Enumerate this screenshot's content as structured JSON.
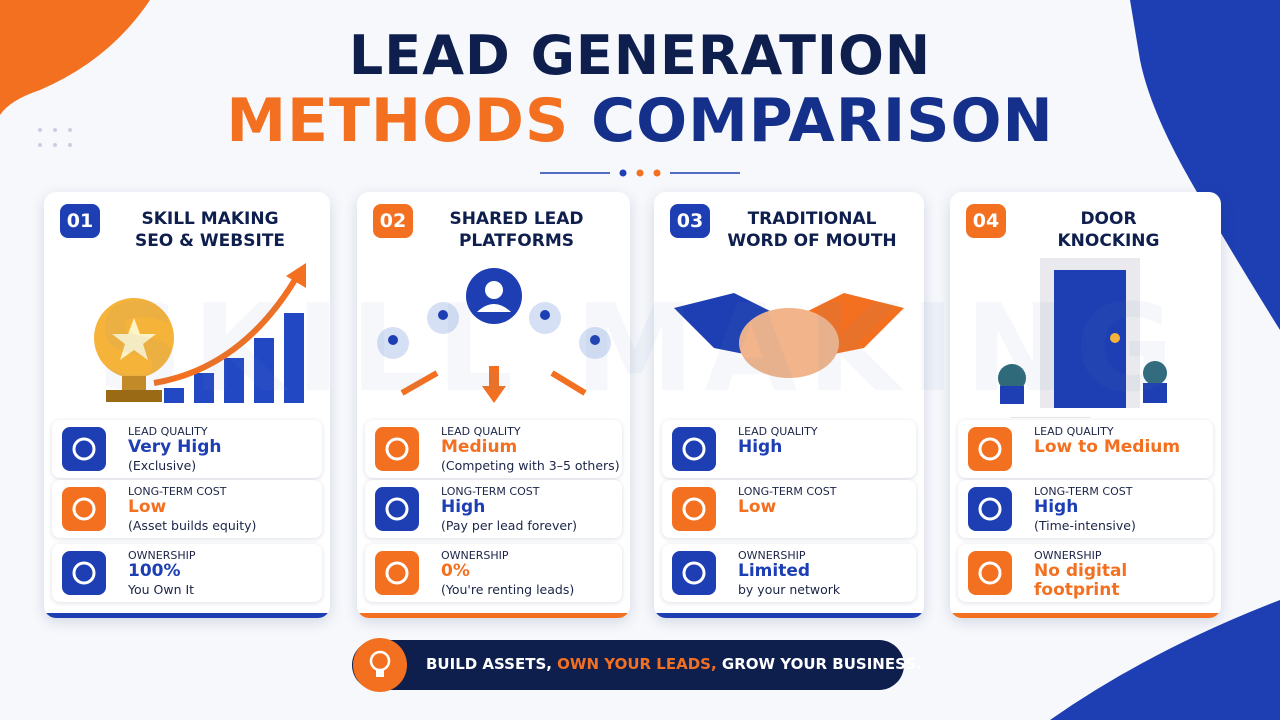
{
  "header": {
    "title_line1": "LEAD GENERATION",
    "title_line2_accent": "METHODS",
    "title_line2_main": "COMPARISON"
  },
  "watermark": "SKILL MAKING",
  "cards": [
    {
      "number": "01",
      "title": [
        "SKILL  MAKING",
        "SEO & WEBSITE"
      ],
      "rows": [
        {
          "label": "LEAD QUALITY",
          "value": "Very High",
          "note": "(Exclusive)"
        },
        {
          "label": "LONG-TERM COST",
          "value": "Low",
          "note": "(Asset builds equity)"
        },
        {
          "label": "OWNERSHIP",
          "value": "100%",
          "note": "You Own It"
        }
      ]
    },
    {
      "number": "02",
      "title": [
        "SHARED LEAD",
        "PLATFORMS"
      ],
      "rows": [
        {
          "label": "LEAD QUALITY",
          "value": "Medium",
          "note": "(Competing with 3–5 others)"
        },
        {
          "label": "LONG-TERM COST",
          "value": "High",
          "note": "(Pay per lead forever)"
        },
        {
          "label": "OWNERSHIP",
          "value": "0%",
          "note": "(You're renting leads)"
        }
      ]
    },
    {
      "number": "03",
      "title": [
        "TRADITIONAL",
        "WORD OF MOUTH"
      ],
      "rows": [
        {
          "label": "LEAD QUALITY",
          "value": "High"
        },
        {
          "label": "LONG-TERM COST",
          "value": "Low"
        },
        {
          "label": "OWNERSHIP",
          "value": "Limited",
          "note": "by your network"
        }
      ]
    },
    {
      "number": "04",
      "title": [
        "DOOR",
        "KNOCKING"
      ],
      "rows": [
        {
          "label": "LEAD QUALITY",
          "value": "Low to Medium"
        },
        {
          "label": "LONG-TERM COST",
          "value": "High",
          "note": "(Time-intensive)"
        },
        {
          "label": "OWNERSHIP",
          "value": "No digital footprint"
        }
      ]
    }
  ],
  "footer": {
    "part1": "BUILD ASSETS, ",
    "highlight": "OWN YOUR LEADS,",
    "part2": " GROW YOUR BUSINESS."
  }
}
